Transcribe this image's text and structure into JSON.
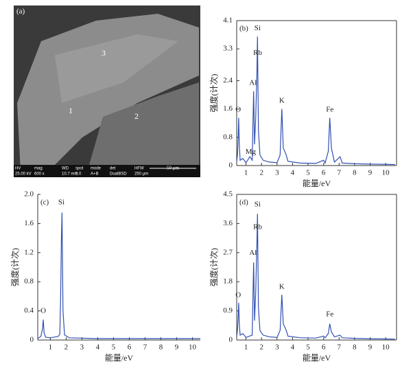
{
  "image": {
    "label": "(a)",
    "regions": [
      "1",
      "2",
      "3"
    ],
    "info": [
      [
        "HV",
        "25.00 kV"
      ],
      [
        "mag",
        "600 x"
      ],
      [
        "WD",
        "10.7 mm"
      ],
      [
        "spot",
        "5.0"
      ],
      [
        "mode",
        "A+B"
      ],
      [
        "det",
        "DualBSD"
      ],
      [
        "HFW",
        "250 μm"
      ]
    ],
    "scale": "50 μm"
  },
  "chart_data": [
    {
      "type": "line",
      "title": "(b)",
      "x_label": "能量/eV",
      "y_label": "强度(计次)",
      "color": "#2f4fb0",
      "frame": true,
      "xlim": [
        0.4,
        10.7
      ],
      "xticks": [
        1,
        2,
        3,
        4,
        5,
        6,
        7,
        8,
        9,
        10
      ],
      "ylim": [
        0,
        4.1
      ],
      "yticks": [
        0,
        0.8,
        1.6,
        2.4,
        3.3,
        4.1
      ],
      "x": [
        0.4,
        0.45,
        0.5,
        0.53,
        0.57,
        0.62,
        0.8,
        1.0,
        1.25,
        1.4,
        1.49,
        1.55,
        1.62,
        1.7,
        1.74,
        1.8,
        1.9,
        2.1,
        2.5,
        3.0,
        3.2,
        3.31,
        3.4,
        3.59,
        3.7,
        4.5,
        5.5,
        6.0,
        6.1,
        6.3,
        6.4,
        6.5,
        6.7,
        7.06,
        7.2,
        8,
        9,
        10.6
      ],
      "values": [
        0.1,
        0.3,
        0.9,
        1.35,
        0.6,
        0.15,
        0.2,
        0.08,
        0.25,
        0.15,
        2.1,
        0.6,
        1.3,
        2.5,
        3.65,
        1.0,
        0.3,
        0.15,
        0.1,
        0.08,
        0.3,
        1.6,
        0.5,
        0.3,
        0.12,
        0.07,
        0.06,
        0.15,
        0.07,
        0.4,
        1.35,
        0.5,
        0.1,
        0.25,
        0.07,
        0.05,
        0.04,
        0.03
      ],
      "annotations": [
        {
          "text": "O",
          "x": 0.5,
          "y": 1.5
        },
        {
          "text": "Mg",
          "x": 1.3,
          "y": 0.3
        },
        {
          "text": "Al",
          "x": 1.45,
          "y": 2.25
        },
        {
          "text": "Rb",
          "x": 1.75,
          "y": 3.1
        },
        {
          "text": "Si",
          "x": 1.74,
          "y": 3.8
        },
        {
          "text": "K",
          "x": 3.31,
          "y": 1.75
        },
        {
          "text": "Fe",
          "x": 6.4,
          "y": 1.5
        }
      ]
    },
    {
      "type": "line",
      "title": "(c)",
      "x_label": "能量/eV",
      "y_label": "强度(计次)",
      "color": "#2f4fb0",
      "frame": false,
      "xlim": [
        0.2,
        10.5
      ],
      "xticks": [
        1,
        2,
        3,
        4,
        5,
        6,
        7,
        8,
        9,
        10
      ],
      "ylim": [
        0,
        2
      ],
      "yticks": [
        0,
        0.4,
        0.8,
        1.2,
        1.6,
        {
          "value": 2,
          "label": "2.0"
        }
      ],
      "x": [
        0.2,
        0.4,
        0.5,
        0.55,
        0.6,
        0.7,
        1.0,
        1.5,
        1.6,
        1.65,
        1.7,
        1.74,
        1.8,
        1.9,
        2.2,
        4,
        10.5
      ],
      "values": [
        0.02,
        0.05,
        0.15,
        0.28,
        0.1,
        0.04,
        0.03,
        0.05,
        0.08,
        0.6,
        1.4,
        1.75,
        0.4,
        0.07,
        0.03,
        0.02,
        0.02
      ],
      "annotations": [
        {
          "text": "O",
          "x": 0.55,
          "y": 0.36
        },
        {
          "text": "Si",
          "x": 1.7,
          "y": 1.85
        }
      ]
    },
    {
      "type": "line",
      "title": "(d)",
      "x_label": "能量/eV",
      "y_label": "强度(计次)",
      "color": "#2f4fb0",
      "frame": true,
      "xlim": [
        0.4,
        10.7
      ],
      "xticks": [
        1,
        2,
        3,
        4,
        5,
        6,
        7,
        8,
        9,
        10
      ],
      "ylim": [
        0,
        4.5
      ],
      "yticks": [
        0,
        0.9,
        1.8,
        2.7,
        3.6,
        4.5
      ],
      "x": [
        0.4,
        0.45,
        0.5,
        0.53,
        0.57,
        0.62,
        0.8,
        1.0,
        1.4,
        1.49,
        1.55,
        1.62,
        1.7,
        1.74,
        1.8,
        1.9,
        2.1,
        2.5,
        3.0,
        3.2,
        3.31,
        3.4,
        3.59,
        3.7,
        4.5,
        5.5,
        6.0,
        6.1,
        6.3,
        6.4,
        6.5,
        6.7,
        7.06,
        7.2,
        8,
        9,
        10.6
      ],
      "values": [
        0.1,
        0.3,
        0.8,
        1.15,
        0.5,
        0.15,
        0.2,
        0.08,
        0.15,
        2.4,
        0.6,
        1.4,
        2.9,
        3.9,
        1.0,
        0.3,
        0.15,
        0.1,
        0.08,
        0.3,
        1.4,
        0.5,
        0.3,
        0.12,
        0.07,
        0.06,
        0.12,
        0.07,
        0.2,
        0.5,
        0.25,
        0.1,
        0.15,
        0.07,
        0.05,
        0.04,
        0.03
      ],
      "annotations": [
        {
          "text": "O",
          "x": 0.5,
          "y": 1.3
        },
        {
          "text": "Al",
          "x": 1.45,
          "y": 2.6
        },
        {
          "text": "Rb",
          "x": 1.75,
          "y": 3.4
        },
        {
          "text": "Si",
          "x": 1.74,
          "y": 4.1
        },
        {
          "text": "K",
          "x": 3.31,
          "y": 1.55
        },
        {
          "text": "Fe",
          "x": 6.4,
          "y": 0.7
        }
      ]
    }
  ]
}
